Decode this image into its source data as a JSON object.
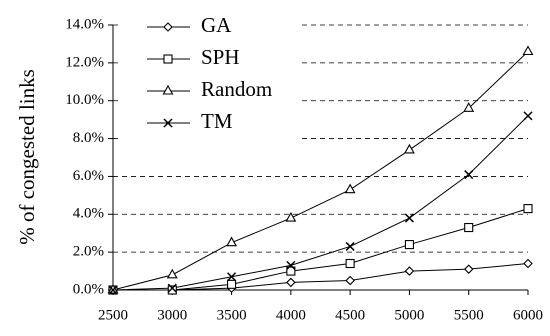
{
  "chart_data": {
    "type": "line",
    "ylabel": "% of congested links",
    "xlabel": "",
    "x": [
      2500,
      3000,
      3500,
      4000,
      4500,
      5000,
      5500,
      6000
    ],
    "x_tick_labels": [
      "2500",
      "3000",
      "3500",
      "4000",
      "4500",
      "5000",
      "5500",
      "6000"
    ],
    "y_tick_labels": [
      "0.0%",
      "2.0%",
      "4.0%",
      "6.0%",
      "8.0%",
      "10.0%",
      "12.0%",
      "14.0%"
    ],
    "y_ticks": [
      0,
      2,
      4,
      6,
      8,
      10,
      12,
      14
    ],
    "ylim": [
      0,
      14
    ],
    "xlim": [
      2500,
      6000
    ],
    "grid": "horizontal dashed",
    "legend_position": "top-left",
    "series": [
      {
        "name": "GA",
        "marker": "diamond",
        "values": [
          0.0,
          0.0,
          0.1,
          0.4,
          0.5,
          1.0,
          1.1,
          1.4
        ]
      },
      {
        "name": "SPH",
        "marker": "square",
        "values": [
          0.0,
          0.0,
          0.3,
          1.0,
          1.4,
          2.4,
          3.3,
          4.3
        ]
      },
      {
        "name": "Random",
        "marker": "triangle",
        "values": [
          0.0,
          0.8,
          2.5,
          3.8,
          5.3,
          7.4,
          9.6,
          12.6
        ]
      },
      {
        "name": "TM",
        "marker": "x",
        "values": [
          0.0,
          0.1,
          0.7,
          1.3,
          2.3,
          3.8,
          6.1,
          9.2
        ]
      }
    ]
  }
}
